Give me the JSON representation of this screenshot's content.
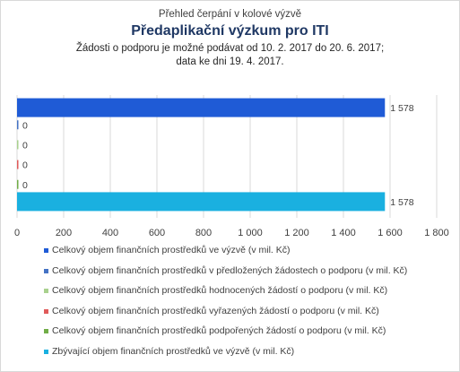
{
  "chart_data": {
    "type": "bar",
    "orientation": "horizontal",
    "supertitle": "Přehled čerpání v kolové výzvě",
    "title": "Předaplikační výzkum pro ITI",
    "subtitle_line1": "Žádosti o podporu je možné  podávat od 10. 2. 2017 do 20. 6. 2017;",
    "subtitle_line2": "data ke dni 19. 4. 2017.",
    "xlim": [
      0,
      1800
    ],
    "x_ticks": [
      "0",
      "200",
      "400",
      "600",
      "800",
      "1 000",
      "1 200",
      "1 400",
      "1 600",
      "1 800"
    ],
    "grid": true,
    "legend_position": "bottom",
    "series": [
      {
        "name": "Celkový objem finančních prostředků ve výzvě (v mil. Kč)",
        "value": 1578,
        "label": "1 578",
        "color": "#1f5bd6"
      },
      {
        "name": "Celkový objem finančních prostředků v předložených žádostech o podporu (v mil. Kč)",
        "value": 0,
        "label": "0",
        "color": "#4472c4"
      },
      {
        "name": "Celkový objem finančních prostředků hodnocených žádostí o podporu (v mil. Kč)",
        "value": 0,
        "label": "0",
        "color": "#a9d18e"
      },
      {
        "name": "Celkový objem finančních prostředků vyřazených žádostí o podporu (v mil. Kč)",
        "value": 0,
        "label": "0",
        "color": "#e05a5a"
      },
      {
        "name": "Celkový objem finančních prostředků podpořených žádostí o podporu (v mil. Kč)",
        "value": 0,
        "label": "0",
        "color": "#70ad47"
      },
      {
        "name": "Zbývající objem finančních prostředků ve výzvě (v mil. Kč)",
        "value": 1578,
        "label": "1 578",
        "color": "#1ab0e0"
      }
    ]
  }
}
